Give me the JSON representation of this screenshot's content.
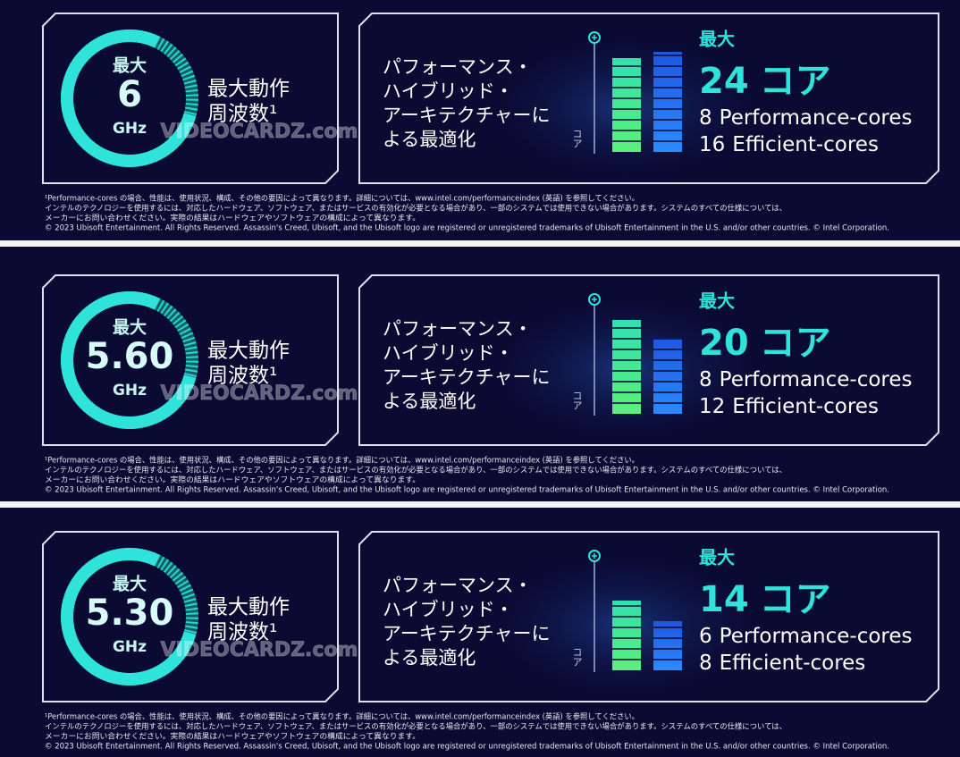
{
  "sections": [
    {
      "gauge": {
        "label": "最大",
        "value": "6",
        "unit": "GHz"
      },
      "frequency_label": [
        "最大動作",
        "周波数¹"
      ],
      "description": [
        "パフォーマンス・",
        "ハイブリッド・",
        "アーキテクチャーに",
        "よる最適化"
      ],
      "axis_label": "コア",
      "cores": {
        "label": "最大",
        "total": "24",
        "unit": "コア",
        "performance": {
          "count": "8",
          "label": "Performance-cores"
        },
        "efficient": {
          "count": "16",
          "label": "Efficient-cores"
        }
      },
      "watermark": "VIDEOCARDZ.com",
      "footnotes": [
        "¹Performance-cores の場合、性能は、使用状況、構成、その他の要因によって異なります。詳細については、www.intel.com/performanceindex (英語) を参照してください。",
        "インテルのテクノロジーを使用するには、対応したハードウェア、ソフトウェア、またはサービスの有効化が必要となる場合があり、一部のシステムでは使用できない場合があります。システムのすべての仕様については、",
        "メーカーにお問い合わせください。実際の結果はハードウェアやソフトウェアの構成によって異なります。",
        "© 2023 Ubisoft Entertainment. All Rights Reserved. Assassin's Creed, Ubisoft, and the Ubisoft logo are registered or unregistered trademarks of Ubisoft Entertainment in the U.S. and/or other countries. © Intel Corporation."
      ]
    },
    {
      "gauge": {
        "label": "最大",
        "value": "5.60",
        "unit": "GHz"
      },
      "frequency_label": [
        "最大動作",
        "周波数¹"
      ],
      "description": [
        "パフォーマンス・",
        "ハイブリッド・",
        "アーキテクチャーに",
        "よる最適化"
      ],
      "axis_label": "コア",
      "cores": {
        "label": "最大",
        "total": "20",
        "unit": "コア",
        "performance": {
          "count": "8",
          "label": "Performance-cores"
        },
        "efficient": {
          "count": "12",
          "label": "Efficient-cores"
        }
      },
      "watermark": "VIDEOCARDZ.com",
      "footnotes": [
        "¹Performance-cores の場合、性能は、使用状況、構成、その他の要因によって異なります。詳細については、www.intel.com/performanceindex (英語) を参照してください。",
        "インテルのテクノロジーを使用するには、対応したハードウェア、ソフトウェア、またはサービスの有効化が必要となる場合があり、一部のシステムでは使用できない場合があります。システムのすべての仕様については、",
        "メーカーにお問い合わせください。実際の結果はハードウェアやソフトウェアの構成によって異なります。",
        "© 2023 Ubisoft Entertainment. All Rights Reserved. Assassin's Creed, Ubisoft, and the Ubisoft logo are registered or unregistered trademarks of Ubisoft Entertainment in the U.S. and/or other countries. © Intel Corporation."
      ]
    },
    {
      "gauge": {
        "label": "最大",
        "value": "5.30",
        "unit": "GHz"
      },
      "frequency_label": [
        "最大動作",
        "周波数¹"
      ],
      "description": [
        "パフォーマンス・",
        "ハイブリッド・",
        "アーキテクチャーに",
        "よる最適化"
      ],
      "axis_label": "コア",
      "cores": {
        "label": "最大",
        "total": "14",
        "unit": "コア",
        "performance": {
          "count": "6",
          "label": "Performance-cores"
        },
        "efficient": {
          "count": "8",
          "label": "Efficient-cores"
        }
      },
      "watermark": "VIDEOCARDZ.com",
      "footnotes": [
        "¹Performance-cores の場合、性能は、使用状況、構成、その他の要因によって異なります。詳細については、www.intel.com/performanceindex (英語) を参照してください。",
        "インテルのテクノロジーを使用するには、対応したハードウェア、ソフトウェア、またはサービスの有効化が必要となる場合があり、一部のシステムでは使用できない場合があります。システムのすべての仕様については、",
        "メーカーにお問い合わせください。実際の結果はハードウェアやソフトウェアの構成によって異なります。",
        "© 2023 Ubisoft Entertainment. All Rights Reserved. Assassin's Creed, Ubisoft, and the Ubisoft logo are registered or unregistered trademarks of Ubisoft Entertainment in the U.S. and/or other countries. © Intel Corporation."
      ]
    }
  ]
}
